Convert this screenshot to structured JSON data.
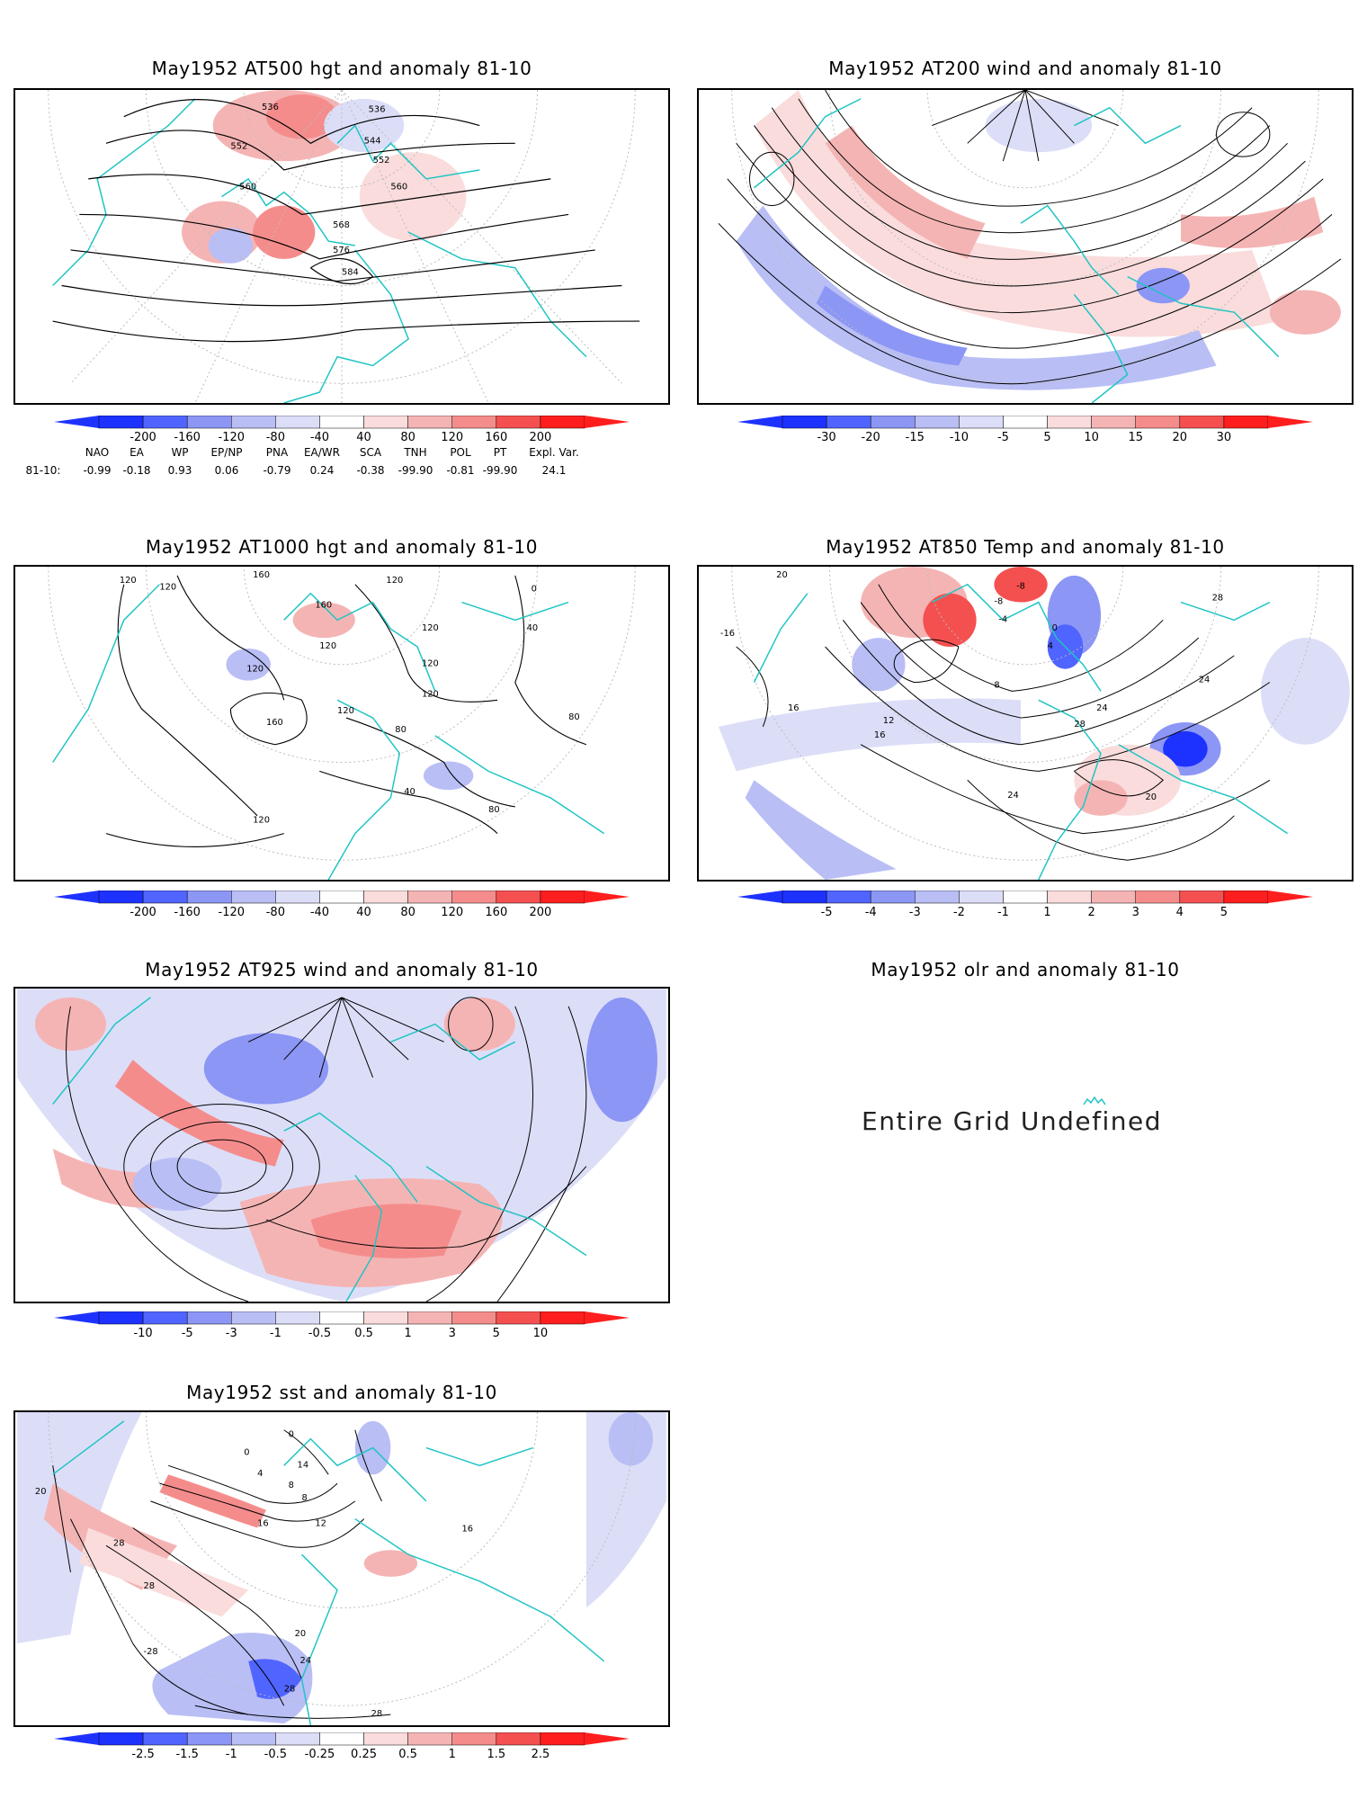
{
  "colors": {
    "map_land_outline": "#20c4c4",
    "contour": "#000000",
    "blue_levels": [
      "#1e32ff",
      "#5064ff",
      "#8c96f5",
      "#b9bef5",
      "#dcdef8"
    ],
    "red_levels": [
      "#fadcdc",
      "#f5b4b4",
      "#f58c8c",
      "#f55050",
      "#ff1e1e"
    ]
  },
  "panels": [
    {
      "id": "at500",
      "title": "May1952 AT500 hgt and anomaly 81-10",
      "contour_labels": [
        "536",
        "536",
        "544",
        "552",
        "552",
        "560",
        "560",
        "568",
        "576",
        "584"
      ],
      "colorbar": [
        "-200",
        "-160",
        "-120",
        "-80",
        "-40",
        "40",
        "80",
        "120",
        "160",
        "200"
      ]
    },
    {
      "id": "at200",
      "title": "May1952 AT200 wind and anomaly 81-10",
      "contour_labels": [],
      "colorbar": [
        "-30",
        "-20",
        "-15",
        "-10",
        "-5",
        "5",
        "10",
        "15",
        "20",
        "30"
      ]
    },
    {
      "id": "at1000",
      "title": "May1952 AT1000 hgt and anomaly 81-10",
      "contour_labels": [
        "120",
        "120",
        "160",
        "160",
        "120",
        "0",
        "120",
        "40",
        "120",
        "120",
        "120",
        "160",
        "120",
        "120",
        "80",
        "80",
        "40",
        "80",
        "120"
      ],
      "colorbar": [
        "-200",
        "-160",
        "-120",
        "-80",
        "-40",
        "40",
        "80",
        "120",
        "160",
        "200"
      ]
    },
    {
      "id": "at850",
      "title": "May1952 AT850 Temp and anomaly 81-10",
      "contour_labels": [
        "20",
        "-8",
        "-8",
        "-4",
        "0",
        "4",
        "28",
        "8",
        "24",
        "16",
        "12",
        "16",
        "28",
        "24",
        "20",
        "24",
        "-16"
      ],
      "colorbar": [
        "-5",
        "-4",
        "-3",
        "-2",
        "-1",
        "1",
        "2",
        "3",
        "4",
        "5"
      ]
    },
    {
      "id": "at925",
      "title": "May1952 AT925 wind and anomaly 81-10",
      "contour_labels": [],
      "colorbar": [
        "-10",
        "-5",
        "-3",
        "-1",
        "-0.5",
        "0.5",
        "1",
        "3",
        "5",
        "10"
      ]
    },
    {
      "id": "olr",
      "title": "May1952 olr and anomaly 81-10",
      "message": "Entire Grid Undefined"
    },
    {
      "id": "sst",
      "title": "May1952 sst and anomaly 81-10",
      "contour_labels": [
        "0",
        "0",
        "4",
        "8",
        "14",
        "8",
        "16",
        "12",
        "20",
        "28",
        "28",
        "20",
        "24",
        "28",
        "28",
        "-28",
        "16"
      ],
      "colorbar": [
        "-2.5",
        "-1.5",
        "-1",
        "-0.5",
        "-0.25",
        "0.25",
        "0.5",
        "1",
        "1.5",
        "2.5"
      ]
    }
  ],
  "indices": {
    "row_label": "81-10:",
    "names": [
      "NAO",
      "EA",
      "WP",
      "EP/NP",
      "PNA",
      "EA/WR",
      "SCA",
      "TNH",
      "POL",
      "PT",
      "Expl. Var."
    ],
    "values": [
      "-0.99",
      "-0.18",
      "0.93",
      "0.06",
      "-0.79",
      "0.24",
      "-0.38",
      "-99.90",
      "-0.81",
      "-99.90",
      "24.1"
    ]
  }
}
